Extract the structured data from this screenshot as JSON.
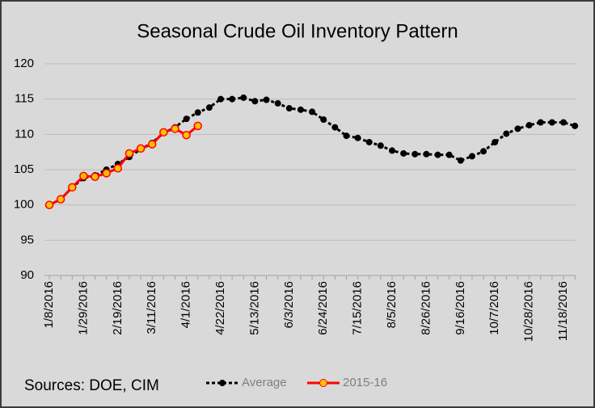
{
  "chart_data": {
    "type": "line",
    "title": "Seasonal Crude Oil Inventory Pattern",
    "source": "Sources:  DOE, CIM",
    "categories": [
      "1/8/2016",
      null,
      null,
      "1/29/2016",
      null,
      null,
      "2/19/2016",
      null,
      null,
      "3/11/2016",
      null,
      null,
      "4/1/2016",
      null,
      null,
      "4/22/2016",
      null,
      null,
      "5/13/2016",
      null,
      null,
      "6/3/2016",
      null,
      null,
      "6/24/2016",
      null,
      null,
      "7/15/2016",
      null,
      null,
      "8/5/2016",
      null,
      null,
      "8/26/2016",
      null,
      null,
      "9/16/2016",
      null,
      null,
      "10/7/2016",
      null,
      null,
      "10/28/2016",
      null,
      null,
      "11/18/2016",
      null
    ],
    "series": [
      {
        "name": "Average",
        "color": "#000000",
        "values": [
          100,
          100.8,
          102.5,
          103.8,
          104.2,
          105,
          105.8,
          106.8,
          107.9,
          108.8,
          110.2,
          111,
          112.2,
          113.1,
          113.8,
          115,
          115,
          115.2,
          114.7,
          114.9,
          114.4,
          113.7,
          113.5,
          113.2,
          112.1,
          111,
          109.8,
          109.5,
          108.9,
          108.4,
          107.7,
          107.3,
          107.2,
          107.2,
          107.1,
          107.1,
          106.3,
          106.9,
          107.6,
          108.9,
          110.1,
          110.8,
          111.3,
          111.7,
          111.7,
          111.7,
          111.2
        ]
      },
      {
        "name": "2015-16",
        "color": "#ff0000",
        "values": [
          100,
          100.8,
          102.5,
          104.1,
          104,
          104.5,
          105.2,
          107.3,
          108,
          108.6,
          110.3,
          110.8,
          109.9,
          111.2,
          null,
          null,
          null,
          null,
          null,
          null,
          null,
          null,
          null,
          null,
          null,
          null,
          null,
          null,
          null,
          null,
          null,
          null,
          null,
          null,
          null,
          null,
          null,
          null,
          null,
          null,
          null,
          null,
          null,
          null,
          null,
          null,
          null
        ]
      }
    ],
    "ylim": [
      90,
      120
    ],
    "yticks": [
      90,
      95,
      100,
      105,
      110,
      115,
      120
    ],
    "grid": true
  }
}
